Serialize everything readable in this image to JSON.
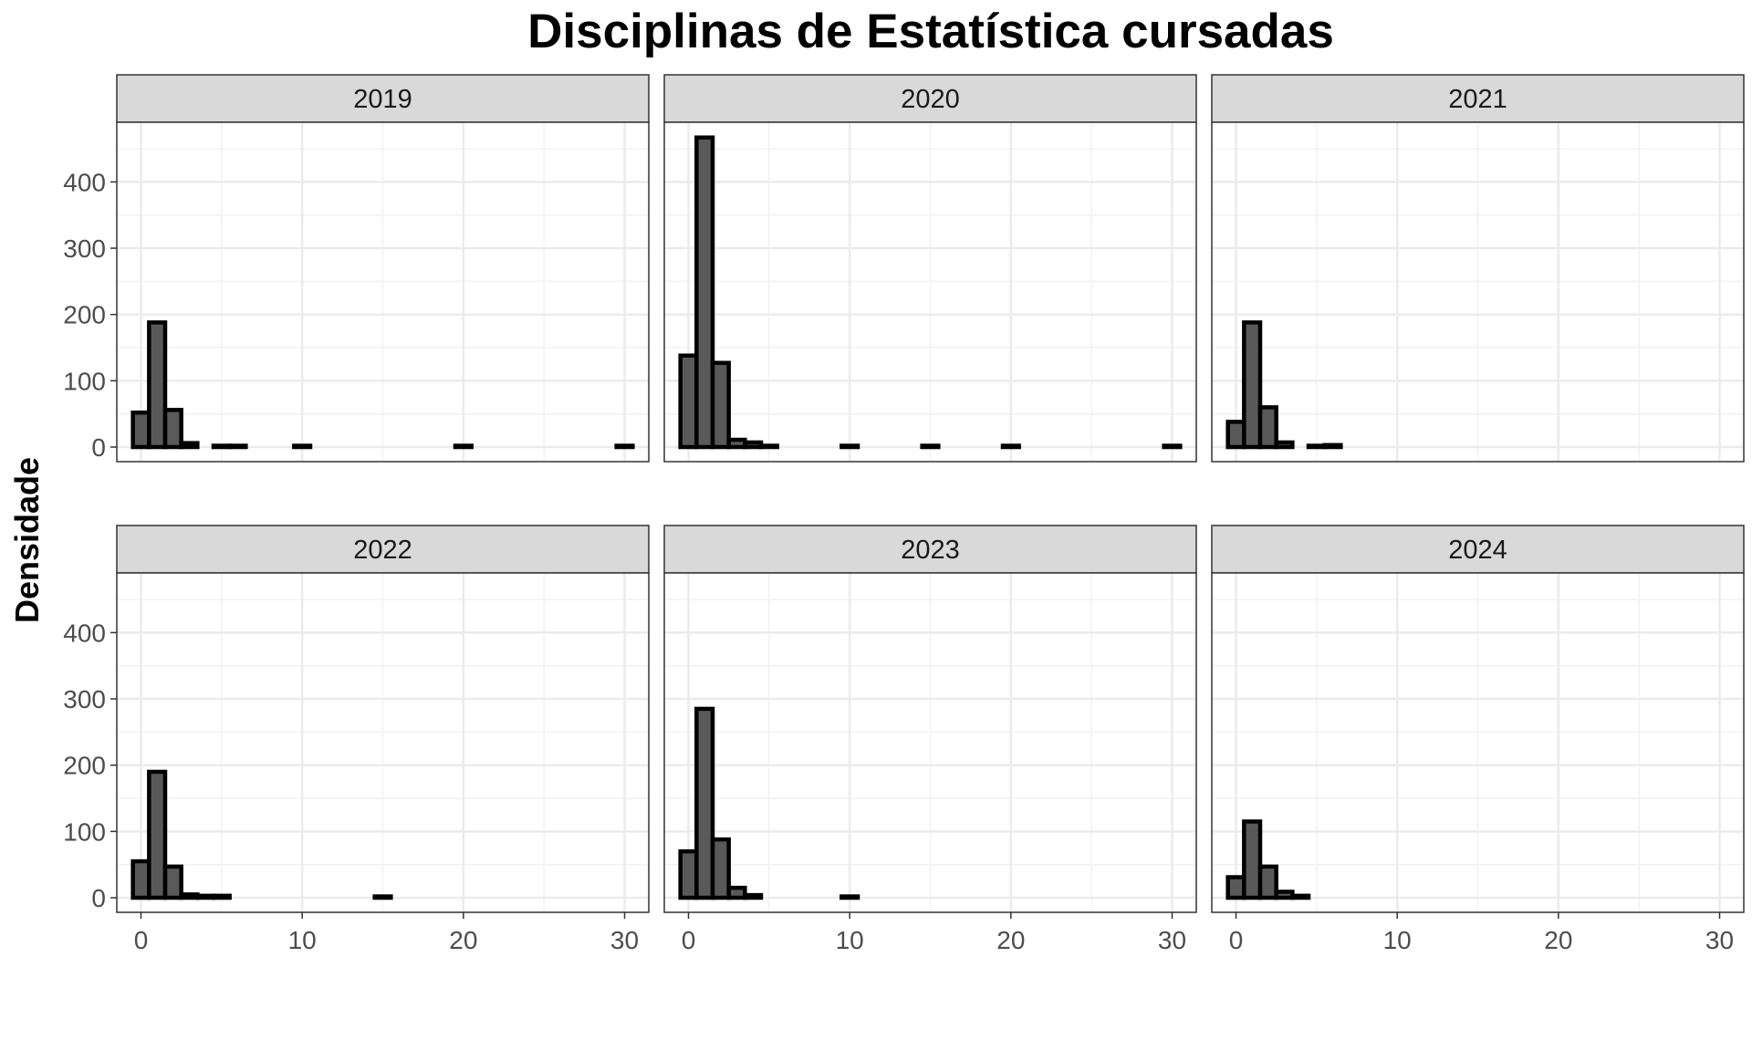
{
  "chart_data": {
    "type": "bar",
    "title": "Disciplinas de Estatística cursadas",
    "xlabel": "",
    "ylabel": "Densidade",
    "xlim": [
      -1.5,
      31.5
    ],
    "ylim": [
      -22,
      490
    ],
    "x_ticks": [
      0,
      10,
      20,
      30
    ],
    "y_ticks": [
      0,
      100,
      200,
      300,
      400
    ],
    "bin_width": 1,
    "grid": true,
    "bar_fill": "#595959",
    "bar_stroke": "#000000",
    "strip_fill": "#d9d9d9",
    "facets": [
      {
        "label": "2019",
        "x": [
          0,
          1,
          2,
          3,
          5,
          6,
          10,
          20,
          30
        ],
        "values": [
          52,
          188,
          56,
          6,
          2,
          2,
          2,
          2,
          2
        ]
      },
      {
        "label": "2020",
        "x": [
          0,
          1,
          2,
          3,
          4,
          5,
          10,
          15,
          20,
          30
        ],
        "values": [
          138,
          467,
          127,
          11,
          7,
          2,
          2,
          2,
          2,
          2
        ]
      },
      {
        "label": "2021",
        "x": [
          0,
          1,
          2,
          3,
          5,
          6
        ],
        "values": [
          38,
          188,
          60,
          7,
          2,
          3
        ]
      },
      {
        "label": "2022",
        "x": [
          0,
          1,
          2,
          3,
          4,
          5,
          15
        ],
        "values": [
          55,
          190,
          47,
          5,
          3,
          3,
          2
        ]
      },
      {
        "label": "2023",
        "x": [
          0,
          1,
          2,
          3,
          4,
          10
        ],
        "values": [
          70,
          285,
          88,
          15,
          4,
          2
        ]
      },
      {
        "label": "2024",
        "x": [
          0,
          1,
          2,
          3,
          4
        ],
        "values": [
          31,
          115,
          47,
          9,
          3
        ]
      }
    ]
  }
}
